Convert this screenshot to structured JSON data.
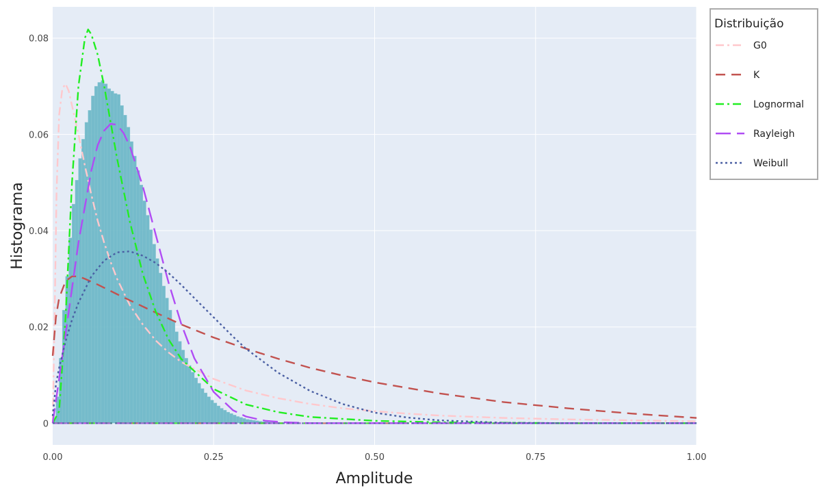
{
  "chart_data": {
    "type": "bar",
    "title": "",
    "xlabel": "Amplitude",
    "ylabel": "Histograma",
    "xlim": [
      0,
      1
    ],
    "ylim": [
      -0.0045,
      0.0865
    ],
    "xticks": [
      0,
      0.25,
      0.5,
      0.75,
      1
    ],
    "xtick_labels": [
      "0.00",
      "0.25",
      "0.50",
      "0.75",
      "1.00"
    ],
    "yticks": [
      0,
      0.02,
      0.04,
      0.06,
      0.08
    ],
    "ytick_labels": [
      "0",
      "0.02",
      "0.04",
      "0.06",
      "0.08"
    ],
    "grid": true,
    "plot_background": "#e5ecf6",
    "legend": {
      "title": "Distribuição",
      "placement": "right-top",
      "entries": [
        "G0",
        "K",
        "Lognormal",
        "Rayleigh",
        "Weibull"
      ]
    },
    "histogram": {
      "color": "#6fb8c8",
      "bin_width": 0.005,
      "x": [
        0.0025,
        0.0075,
        0.0125,
        0.0175,
        0.0225,
        0.0275,
        0.0325,
        0.0375,
        0.0425,
        0.0475,
        0.0525,
        0.0575,
        0.0625,
        0.0675,
        0.0725,
        0.0775,
        0.0825,
        0.0875,
        0.0925,
        0.0975,
        0.1025,
        0.1075,
        0.1125,
        0.1175,
        0.1225,
        0.1275,
        0.1325,
        0.1375,
        0.1425,
        0.1475,
        0.1525,
        0.1575,
        0.1625,
        0.1675,
        0.1725,
        0.1775,
        0.1825,
        0.1875,
        0.1925,
        0.1975,
        0.2025,
        0.2075,
        0.2125,
        0.2175,
        0.2225,
        0.2275,
        0.2325,
        0.2375,
        0.2425,
        0.2475,
        0.2525,
        0.2575,
        0.2625,
        0.2675,
        0.2725,
        0.2775,
        0.2825,
        0.2875,
        0.2925,
        0.2975,
        0.3025,
        0.3075,
        0.3125,
        0.3175,
        0.3225,
        0.3275,
        0.3325,
        0.3375,
        0.3425,
        0.3475,
        0.3525,
        0.3575,
        0.3625,
        0.3675,
        0.3725,
        0.3775,
        0.3825,
        0.3875,
        0.3925,
        0.3975
      ],
      "values": [
        0.0008,
        0.0055,
        0.0135,
        0.0235,
        0.0305,
        0.0385,
        0.0455,
        0.0505,
        0.055,
        0.059,
        0.0625,
        0.065,
        0.068,
        0.07,
        0.0708,
        0.0712,
        0.0705,
        0.0695,
        0.069,
        0.0685,
        0.0683,
        0.066,
        0.064,
        0.0615,
        0.0585,
        0.0555,
        0.0525,
        0.0495,
        0.0462,
        0.0432,
        0.0402,
        0.0372,
        0.0342,
        0.0312,
        0.0285,
        0.026,
        0.0235,
        0.0212,
        0.019,
        0.017,
        0.0152,
        0.0135,
        0.012,
        0.0106,
        0.0094,
        0.0083,
        0.0072,
        0.0063,
        0.0055,
        0.0048,
        0.0042,
        0.0036,
        0.0031,
        0.0027,
        0.0023,
        0.002,
        0.0017,
        0.0014,
        0.0012,
        0.001,
        0.0008,
        0.0007,
        0.0006,
        0.0005,
        0.0004,
        0.0003,
        0.0003,
        0.0002,
        0.0002,
        0.0001,
        0.0001,
        0.0001,
        0.0001,
        0.0001,
        0,
        0,
        0,
        0,
        0,
        0
      ]
    },
    "series": [
      {
        "name": "G0",
        "color": "#ffc8cc",
        "dash": "dashdot",
        "x": [
          0,
          0.003,
          0.006,
          0.01,
          0.015,
          0.02,
          0.025,
          0.03,
          0.04,
          0.05,
          0.06,
          0.07,
          0.08,
          0.09,
          0.1,
          0.12,
          0.14,
          0.16,
          0.18,
          0.2,
          0.25,
          0.3,
          0.35,
          0.4,
          0.45,
          0.5,
          0.55,
          0.6,
          0.7,
          0.8,
          0.9,
          1.0
        ],
        "y": [
          0.0,
          0.022,
          0.048,
          0.064,
          0.0695,
          0.0705,
          0.069,
          0.066,
          0.06,
          0.0535,
          0.0475,
          0.042,
          0.0375,
          0.0335,
          0.03,
          0.0245,
          0.0205,
          0.0172,
          0.0147,
          0.0127,
          0.0092,
          0.0068,
          0.0052,
          0.004,
          0.0031,
          0.0025,
          0.002,
          0.0016,
          0.0011,
          0.0008,
          0.0006,
          0.0004
        ]
      },
      {
        "name": "K",
        "color": "#c2524f",
        "dash": "dash",
        "x": [
          0,
          0.005,
          0.01,
          0.02,
          0.03,
          0.04,
          0.05,
          0.07,
          0.1,
          0.15,
          0.2,
          0.25,
          0.3,
          0.35,
          0.4,
          0.45,
          0.5,
          0.6,
          0.7,
          0.8,
          0.9,
          1.0
        ],
        "y": [
          0.014,
          0.022,
          0.026,
          0.0295,
          0.0305,
          0.0305,
          0.03,
          0.0288,
          0.0268,
          0.0236,
          0.0205,
          0.0178,
          0.0155,
          0.0134,
          0.0115,
          0.0099,
          0.0085,
          0.0062,
          0.0044,
          0.0031,
          0.002,
          0.0011
        ]
      },
      {
        "name": "Lognormal",
        "color": "#22ee22",
        "dash": "dashdot",
        "x": [
          0,
          0.01,
          0.02,
          0.03,
          0.04,
          0.05,
          0.055,
          0.06,
          0.07,
          0.08,
          0.09,
          0.1,
          0.12,
          0.14,
          0.16,
          0.18,
          0.2,
          0.25,
          0.3,
          0.35,
          0.4,
          0.5,
          0.6,
          0.8,
          1.0
        ],
        "y": [
          0,
          0.0025,
          0.022,
          0.05,
          0.07,
          0.08,
          0.0818,
          0.0808,
          0.0765,
          0.07,
          0.0625,
          0.055,
          0.0418,
          0.031,
          0.0232,
          0.0174,
          0.0133,
          0.0071,
          0.0039,
          0.0023,
          0.0013,
          0.0005,
          0.0002,
          0,
          0
        ]
      },
      {
        "name": "Rayleigh",
        "color": "#b04cf4",
        "dash": "longdash",
        "x": [
          0,
          0.02,
          0.04,
          0.06,
          0.07,
          0.08,
          0.09,
          0.1,
          0.11,
          0.12,
          0.14,
          0.16,
          0.18,
          0.2,
          0.22,
          0.25,
          0.28,
          0.3,
          0.33,
          0.36,
          0.4,
          0.45,
          0.5,
          0.6,
          0.8,
          1.0
        ],
        "y": [
          0,
          0.0185,
          0.0375,
          0.0525,
          0.0578,
          0.0608,
          0.0622,
          0.062,
          0.0603,
          0.0575,
          0.0492,
          0.0392,
          0.0292,
          0.0205,
          0.0135,
          0.0065,
          0.0027,
          0.0014,
          0.0005,
          0.0002,
          0,
          0,
          0,
          0,
          0,
          0
        ]
      },
      {
        "name": "Weibull",
        "color": "#4a5fa3",
        "dash": "dot",
        "x": [
          0,
          0.005,
          0.01,
          0.02,
          0.03,
          0.04,
          0.06,
          0.08,
          0.1,
          0.12,
          0.14,
          0.16,
          0.18,
          0.2,
          0.22,
          0.25,
          0.28,
          0.3,
          0.35,
          0.4,
          0.45,
          0.5,
          0.55,
          0.6,
          0.7,
          0.8,
          0.9,
          1.0
        ],
        "y": [
          0.0015,
          0.008,
          0.0115,
          0.017,
          0.0215,
          0.025,
          0.0305,
          0.0338,
          0.0355,
          0.0357,
          0.0348,
          0.0333,
          0.0312,
          0.0287,
          0.026,
          0.022,
          0.018,
          0.0155,
          0.0105,
          0.0067,
          0.004,
          0.0022,
          0.0012,
          0.0006,
          0.0001,
          0,
          0,
          0
        ]
      }
    ]
  }
}
